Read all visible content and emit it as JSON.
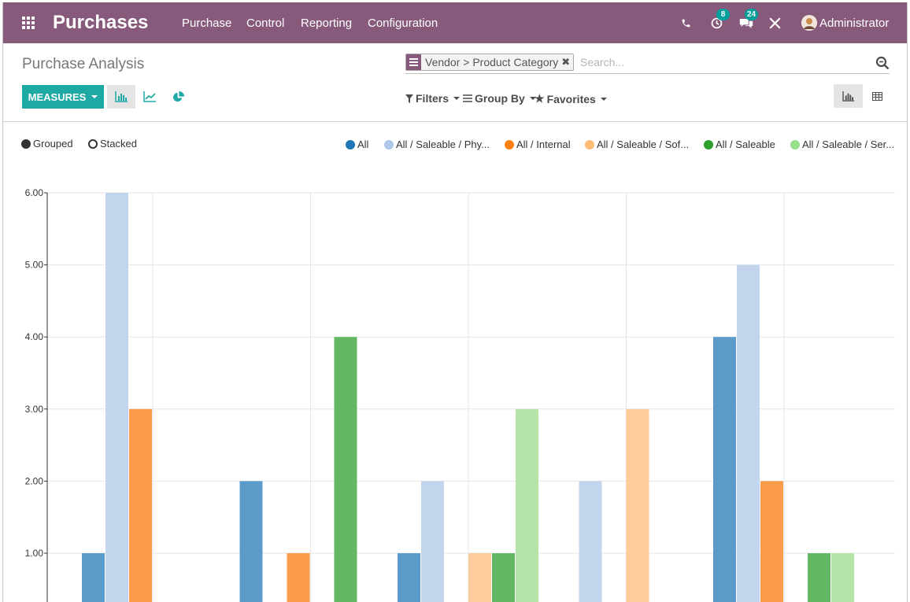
{
  "navbar": {
    "apps_icon": "apps-grid-icon",
    "brand": "Purchases",
    "menu": [
      "Purchase",
      "Control",
      "Reporting",
      "Configuration"
    ],
    "icons": {
      "phone": "phone-icon",
      "activity": "activity-clock-icon",
      "activity_count": "8",
      "messages": "chat-icon",
      "messages_count": "24",
      "debug": "tools-icon"
    },
    "user": "Administrator",
    "color": "#875a7b",
    "badge_color": "#00a09d"
  },
  "control_panel": {
    "title": "Purchase Analysis",
    "search": {
      "facet_label": "Vendor > Product Category",
      "placeholder": "Search..."
    },
    "measures_label": "MEASURES",
    "measures_color": "#1fa9a5",
    "chart_modes": [
      "bar-chart-icon",
      "line-chart-icon",
      "pie-chart-icon"
    ],
    "active_mode": "bar",
    "filters_label": "Filters",
    "groupby_label": "Group By",
    "favorites_label": "Favorites",
    "views": [
      "graph-view-icon",
      "pivot-view-icon"
    ],
    "active_view": "graph"
  },
  "chart_controls": {
    "grouped_label": "Grouped",
    "stacked_label": "Stacked",
    "selected": "grouped"
  },
  "chart_data": {
    "type": "bar",
    "title": "",
    "xlabel": "",
    "ylabel": "",
    "ylim": [
      0,
      6
    ],
    "y_ticks": [
      "1.00",
      "2.00",
      "3.00",
      "4.00",
      "5.00",
      "6.00"
    ],
    "grid": true,
    "legend_position": "top-right",
    "categories": [
      "",
      "",
      "",
      "",
      ""
    ],
    "series": [
      {
        "name": "All",
        "color": "#5b9bc9",
        "legend_color": "#1f77b4",
        "values": [
          1,
          2,
          1,
          0,
          4
        ]
      },
      {
        "name": "All / Saleable / Phy...",
        "color": "#c3d5ed",
        "legend_color": "#aec7e8",
        "values": [
          6,
          0,
          2,
          2,
          5
        ]
      },
      {
        "name": "All / Internal",
        "color": "#fb9c4c",
        "legend_color": "#ff7f0e",
        "values": [
          3,
          1,
          0,
          0,
          2
        ]
      },
      {
        "name": "All / Saleable / Sof...",
        "color": "#fccc9c",
        "legend_color": "#ffbb78",
        "values": [
          0,
          0,
          1,
          3,
          0
        ]
      },
      {
        "name": "All / Saleable",
        "color": "#63b963",
        "legend_color": "#2ca02c",
        "values": [
          0,
          4,
          1,
          0,
          1
        ]
      },
      {
        "name": "All / Saleable / Ser...",
        "color": "#b4e4a8",
        "legend_color": "#98df8a",
        "values": [
          0,
          0,
          3,
          0,
          1
        ]
      }
    ]
  }
}
